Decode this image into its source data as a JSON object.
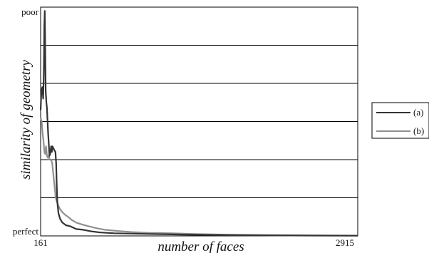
{
  "chart_data": {
    "type": "line",
    "xlabel": "number of faces",
    "ylabel": "similarity of geometry",
    "xlim": [
      161,
      2915
    ],
    "ylim": [
      0,
      6
    ],
    "x_tick_labels": [
      "161",
      "2915"
    ],
    "y_tick_labels": {
      "top": "poor",
      "bottom": "perfect"
    },
    "grid": "horizontal",
    "legend_position": "right",
    "series": [
      {
        "name": "(a)",
        "color": "#333333",
        "points": [
          [
            161,
            3.3
          ],
          [
            168,
            3.8
          ],
          [
            176,
            3.9
          ],
          [
            183,
            3.6
          ],
          [
            189,
            4.3
          ],
          [
            193,
            5.5
          ],
          [
            197,
            5.9
          ],
          [
            201,
            4.9
          ],
          [
            205,
            3.8
          ],
          [
            211,
            3.5
          ],
          [
            216,
            3.35
          ],
          [
            220,
            3.1
          ],
          [
            226,
            2.7
          ],
          [
            232,
            2.4
          ],
          [
            238,
            2.1
          ],
          [
            244,
            2.15
          ],
          [
            252,
            2.35
          ],
          [
            258,
            2.2
          ],
          [
            264,
            2.35
          ],
          [
            272,
            2.3
          ],
          [
            280,
            2.25
          ],
          [
            290,
            2.2
          ],
          [
            296,
            1.9
          ],
          [
            300,
            1.4
          ],
          [
            306,
            0.9
          ],
          [
            316,
            0.6
          ],
          [
            330,
            0.45
          ],
          [
            350,
            0.35
          ],
          [
            380,
            0.28
          ],
          [
            420,
            0.25
          ],
          [
            470,
            0.18
          ],
          [
            530,
            0.16
          ],
          [
            600,
            0.12
          ],
          [
            680,
            0.09
          ],
          [
            800,
            0.07
          ],
          [
            950,
            0.06
          ],
          [
            1100,
            0.05
          ],
          [
            1300,
            0.04
          ],
          [
            1500,
            0.03
          ],
          [
            1800,
            0.02
          ],
          [
            2100,
            0.015
          ],
          [
            2500,
            0.01
          ],
          [
            2915,
            0.005
          ]
        ]
      },
      {
        "name": "(b)",
        "color": "#909090",
        "points": [
          [
            161,
            3.1
          ],
          [
            170,
            3.0
          ],
          [
            178,
            2.7
          ],
          [
            186,
            2.5
          ],
          [
            194,
            2.2
          ],
          [
            200,
            2.15
          ],
          [
            208,
            2.35
          ],
          [
            216,
            2.1
          ],
          [
            224,
            2.05
          ],
          [
            232,
            2.1
          ],
          [
            240,
            2.0
          ],
          [
            252,
            2.0
          ],
          [
            262,
            1.9
          ],
          [
            272,
            1.6
          ],
          [
            282,
            1.3
          ],
          [
            292,
            1.0
          ],
          [
            302,
            0.9
          ],
          [
            314,
            0.8
          ],
          [
            330,
            0.7
          ],
          [
            350,
            0.62
          ],
          [
            375,
            0.55
          ],
          [
            400,
            0.5
          ],
          [
            430,
            0.42
          ],
          [
            470,
            0.35
          ],
          [
            520,
            0.3
          ],
          [
            580,
            0.25
          ],
          [
            650,
            0.2
          ],
          [
            720,
            0.16
          ],
          [
            820,
            0.13
          ],
          [
            950,
            0.1
          ],
          [
            1100,
            0.08
          ],
          [
            1300,
            0.07
          ],
          [
            1500,
            0.05
          ],
          [
            1800,
            0.03
          ],
          [
            2100,
            0.02
          ],
          [
            2500,
            0.012
          ],
          [
            2915,
            0.008
          ]
        ]
      }
    ]
  }
}
